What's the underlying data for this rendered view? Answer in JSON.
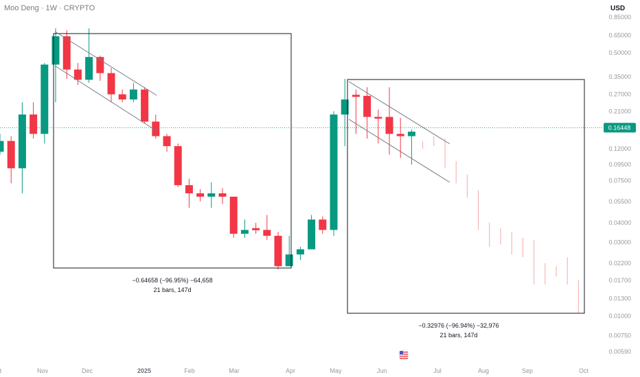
{
  "header": {
    "symbol": "Moo Deng · 1W · CRYPTO",
    "currency": "USD"
  },
  "chart_data": {
    "type": "candlestick",
    "title": "Moo Deng · 1W · CRYPTO",
    "scale": "log",
    "y_ticks": [
      "0.85000",
      "0.65000",
      "0.50000",
      "0.35000",
      "0.27000",
      "0.21000",
      "0.12000",
      "0.09500",
      "0.07500",
      "0.05500",
      "0.04000",
      "0.03000",
      "0.02200",
      "0.01700",
      "0.01300",
      "0.01000",
      "0.00750",
      "0.00590"
    ],
    "x_ticks": [
      {
        "label": "t"
      },
      {
        "label": "Nov"
      },
      {
        "label": "Dec"
      },
      {
        "label": "2025",
        "bold": true
      },
      {
        "label": "Feb"
      },
      {
        "label": "Mar"
      },
      {
        "label": "Apr"
      },
      {
        "label": "May"
      },
      {
        "label": "Jun"
      },
      {
        "label": "Jul"
      },
      {
        "label": "Aug"
      },
      {
        "label": "Sep"
      },
      {
        "label": "Oct"
      }
    ],
    "last_price": "0.16448",
    "candles": [
      {
        "o": 0.115,
        "c": 0.135,
        "h": 0.15,
        "l": 0.11
      },
      {
        "o": 0.135,
        "c": 0.09,
        "h": 0.145,
        "l": 0.072
      },
      {
        "o": 0.09,
        "c": 0.2,
        "h": 0.24,
        "l": 0.062
      },
      {
        "o": 0.2,
        "c": 0.15,
        "h": 0.24,
        "l": 0.14
      },
      {
        "o": 0.15,
        "c": 0.42,
        "h": 0.43,
        "l": 0.13
      },
      {
        "o": 0.42,
        "c": 0.64,
        "h": 0.72,
        "l": 0.24
      },
      {
        "o": 0.64,
        "c": 0.39,
        "h": 0.7,
        "l": 0.34
      },
      {
        "o": 0.39,
        "c": 0.335,
        "h": 0.43,
        "l": 0.31
      },
      {
        "o": 0.335,
        "c": 0.47,
        "h": 0.72,
        "l": 0.32
      },
      {
        "o": 0.47,
        "c": 0.37,
        "h": 0.48,
        "l": 0.33
      },
      {
        "o": 0.37,
        "c": 0.27,
        "h": 0.4,
        "l": 0.24
      },
      {
        "o": 0.27,
        "c": 0.25,
        "h": 0.29,
        "l": 0.24
      },
      {
        "o": 0.25,
        "c": 0.29,
        "h": 0.32,
        "l": 0.24
      },
      {
        "o": 0.29,
        "c": 0.18,
        "h": 0.3,
        "l": 0.175
      },
      {
        "o": 0.18,
        "c": 0.145,
        "h": 0.2,
        "l": 0.14
      },
      {
        "o": 0.145,
        "c": 0.125,
        "h": 0.15,
        "l": 0.115
      },
      {
        "o": 0.125,
        "c": 0.07,
        "h": 0.13,
        "l": 0.068
      },
      {
        "o": 0.07,
        "c": 0.062,
        "h": 0.077,
        "l": 0.05
      },
      {
        "o": 0.062,
        "c": 0.059,
        "h": 0.066,
        "l": 0.055
      },
      {
        "o": 0.059,
        "c": 0.062,
        "h": 0.073,
        "l": 0.05
      },
      {
        "o": 0.062,
        "c": 0.059,
        "h": 0.067,
        "l": 0.053
      },
      {
        "o": 0.059,
        "c": 0.034,
        "h": 0.059,
        "l": 0.032
      },
      {
        "o": 0.034,
        "c": 0.036,
        "h": 0.042,
        "l": 0.032
      },
      {
        "o": 0.0364,
        "c": 0.0364,
        "h": 0.04,
        "l": 0.034
      },
      {
        "o": 0.036,
        "c": 0.033,
        "h": 0.045,
        "l": 0.031
      },
      {
        "o": 0.033,
        "c": 0.021,
        "h": 0.035,
        "l": 0.02
      },
      {
        "o": 0.021,
        "c": 0.025,
        "h": 0.033,
        "l": 0.021
      },
      {
        "o": 0.025,
        "c": 0.027,
        "h": 0.028,
        "l": 0.023
      },
      {
        "o": 0.027,
        "c": 0.042,
        "h": 0.045,
        "l": 0.027
      },
      {
        "o": 0.042,
        "c": 0.036,
        "h": 0.044,
        "l": 0.034
      },
      {
        "o": 0.036,
        "c": 0.2,
        "h": 0.21,
        "l": 0.033
      },
      {
        "o": 0.2,
        "c": 0.25,
        "h": 0.34,
        "l": 0.125
      },
      {
        "o": 0.264,
        "c": 0.264,
        "h": 0.29,
        "l": 0.15
      },
      {
        "o": 0.264,
        "c": 0.193,
        "h": 0.3,
        "l": 0.14
      },
      {
        "o": 0.193,
        "c": 0.188,
        "h": 0.215,
        "l": 0.13
      },
      {
        "o": 0.193,
        "c": 0.15,
        "h": 0.3,
        "l": 0.11
      },
      {
        "o": 0.15,
        "c": 0.145,
        "h": 0.19,
        "l": 0.105
      },
      {
        "o": 0.145,
        "c": 0.155,
        "h": 0.16,
        "l": 0.095
      },
      {
        "o": 0.13,
        "c": 0.12,
        "h": 0.135,
        "l": 0.12
      },
      {
        "o": 0.14,
        "c": 0.125,
        "h": 0.145,
        "l": 0.125
      },
      {
        "o": 0.135,
        "c": 0.09,
        "h": 0.14,
        "l": 0.09
      },
      {
        "o": 0.098,
        "c": 0.072,
        "h": 0.1,
        "l": 0.072
      },
      {
        "o": 0.08,
        "c": 0.058,
        "h": 0.082,
        "l": 0.058
      },
      {
        "o": 0.062,
        "c": 0.036,
        "h": 0.065,
        "l": 0.036
      },
      {
        "o": 0.039,
        "c": 0.028,
        "h": 0.04,
        "l": 0.028
      },
      {
        "o": 0.036,
        "c": 0.029,
        "h": 0.037,
        "l": 0.029
      },
      {
        "o": 0.034,
        "c": 0.025,
        "h": 0.035,
        "l": 0.025
      },
      {
        "o": 0.031,
        "c": 0.024,
        "h": 0.032,
        "l": 0.024
      },
      {
        "o": 0.03,
        "c": 0.016,
        "h": 0.031,
        "l": 0.016
      },
      {
        "o": 0.021,
        "c": 0.016,
        "h": 0.022,
        "l": 0.016
      },
      {
        "o": 0.021,
        "c": 0.018,
        "h": 0.021,
        "l": 0.018
      },
      {
        "o": 0.023,
        "c": 0.016,
        "h": 0.024,
        "l": 0.016
      },
      {
        "o": 0.017,
        "c": 0.011,
        "h": 0.017,
        "l": 0.0105
      }
    ],
    "measurements": [
      {
        "line1": "−0.64658 (−96.95%) −64,658",
        "line2": "21 bars, 147d"
      },
      {
        "line1": "−0.32976 (−96.94%) −32,976",
        "line2": "21 bars, 147d"
      }
    ],
    "colors": {
      "up": "#089981",
      "down": "#f23645",
      "down_light": "#f7a9a7",
      "tag": "#089981",
      "grid_price_line": "#2f8f70"
    }
  }
}
